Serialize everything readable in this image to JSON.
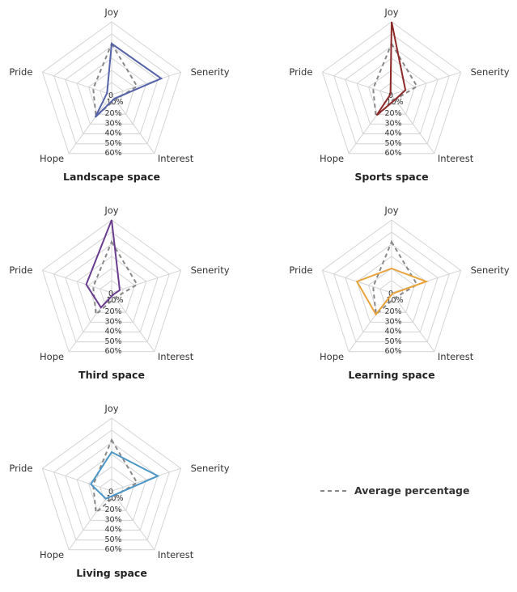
{
  "legend": {
    "label": "Average percentage",
    "color": "#888888"
  },
  "chart_data": [
    {
      "type": "radar",
      "title": "Landscape space",
      "axes": [
        "Joy",
        "Senerity",
        "Interest",
        "Hope",
        "Pride"
      ],
      "ticks": [
        "0",
        "10%",
        "20%",
        "30%",
        "40%",
        "50%",
        "60%"
      ],
      "rmax": 60,
      "color": "#5563a8",
      "series": [
        {
          "name": "Landscape space",
          "values": [
            42,
            43,
            4,
            23,
            4
          ]
        },
        {
          "name": "Average percentage",
          "values": [
            42,
            22,
            5,
            22,
            16
          ]
        }
      ]
    },
    {
      "type": "radar",
      "title": "Sports space",
      "axes": [
        "Joy",
        "Senerity",
        "Interest",
        "Hope",
        "Pride"
      ],
      "ticks": [
        "0",
        "10%",
        "20%",
        "30%",
        "40%",
        "50%",
        "60%"
      ],
      "rmax": 60,
      "color": "#8e2a2a",
      "series": [
        {
          "name": "Sports space",
          "values": [
            60,
            12,
            5,
            21,
            1
          ]
        },
        {
          "name": "Average percentage",
          "values": [
            42,
            22,
            5,
            22,
            16
          ]
        }
      ]
    },
    {
      "type": "radar",
      "title": "Third space",
      "axes": [
        "Joy",
        "Senerity",
        "Interest",
        "Hope",
        "Pride"
      ],
      "ticks": [
        "0",
        "10%",
        "20%",
        "30%",
        "40%",
        "50%",
        "60%"
      ],
      "rmax": 60,
      "color": "#6a3c8e",
      "series": [
        {
          "name": "Third space",
          "values": [
            60,
            7,
            2,
            15,
            22
          ]
        },
        {
          "name": "Average percentage",
          "values": [
            42,
            22,
            5,
            22,
            16
          ]
        }
      ]
    },
    {
      "type": "radar",
      "title": "Learning space",
      "axes": [
        "Joy",
        "Senerity",
        "Interest",
        "Hope",
        "Pride"
      ],
      "ticks": [
        "0",
        "10%",
        "20%",
        "30%",
        "40%",
        "50%",
        "60%"
      ],
      "rmax": 60,
      "color": "#e8a33a",
      "series": [
        {
          "name": "Learning space",
          "values": [
            20,
            30,
            1,
            22,
            30
          ]
        },
        {
          "name": "Average percentage",
          "values": [
            42,
            22,
            5,
            22,
            16
          ]
        }
      ]
    },
    {
      "type": "radar",
      "title": "Living space",
      "axes": [
        "Joy",
        "Senerity",
        "Interest",
        "Hope",
        "Pride"
      ],
      "ticks": [
        "0",
        "10%",
        "20%",
        "30%",
        "40%",
        "50%",
        "60%"
      ],
      "rmax": 60,
      "color": "#4a97c6",
      "series": [
        {
          "name": "Living space",
          "values": [
            32,
            40,
            4,
            8,
            18
          ]
        },
        {
          "name": "Average percentage",
          "values": [
            42,
            22,
            5,
            22,
            16
          ]
        }
      ]
    }
  ]
}
